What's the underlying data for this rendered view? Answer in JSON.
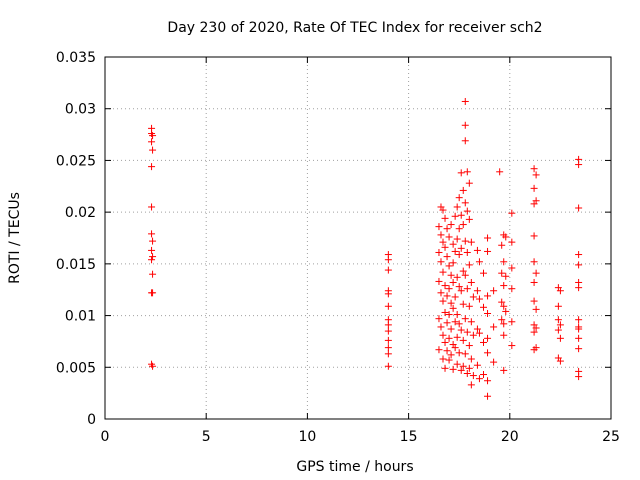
{
  "chart_data": {
    "type": "scatter",
    "title": "Day 230 of 2020, Rate Of TEC Index for receiver sch2",
    "xlabel": "GPS time / hours",
    "ylabel": "ROTI / TECUs",
    "xlim": [
      0,
      25
    ],
    "ylim": [
      0,
      0.035
    ],
    "x_ticks": [
      0,
      5,
      10,
      15,
      20,
      25
    ],
    "x_tick_labels": [
      "0",
      "5",
      "10",
      "15",
      "20",
      "25"
    ],
    "y_ticks": [
      0,
      0.005,
      0.01,
      0.015,
      0.02,
      0.025,
      0.03,
      0.035
    ],
    "y_tick_labels": [
      "0",
      "0.005",
      "0.01",
      "0.015",
      "0.02",
      "0.025",
      "0.03",
      "0.035"
    ],
    "grid": true,
    "marker": "plus",
    "marker_color": "#ff0000",
    "series": [
      {
        "points": [
          [
            2.3,
            0.0281
          ],
          [
            2.3,
            0.0276
          ],
          [
            2.35,
            0.0274
          ],
          [
            2.3,
            0.0268
          ],
          [
            2.35,
            0.026
          ],
          [
            2.3,
            0.0244
          ],
          [
            2.3,
            0.0205
          ],
          [
            2.3,
            0.0179
          ],
          [
            2.35,
            0.0172
          ],
          [
            2.3,
            0.0163
          ],
          [
            2.35,
            0.0157
          ],
          [
            2.3,
            0.0154
          ],
          [
            2.35,
            0.014
          ],
          [
            2.3,
            0.0122
          ],
          [
            2.35,
            0.0122
          ],
          [
            2.3,
            0.0053
          ],
          [
            2.35,
            0.0051
          ],
          [
            14.0,
            0.0159
          ],
          [
            14.0,
            0.0154
          ],
          [
            14.0,
            0.0144
          ],
          [
            14.0,
            0.0124
          ],
          [
            14.0,
            0.0121
          ],
          [
            14.0,
            0.0109
          ],
          [
            14.0,
            0.0096
          ],
          [
            14.0,
            0.0091
          ],
          [
            14.0,
            0.0085
          ],
          [
            14.0,
            0.0076
          ],
          [
            14.0,
            0.0069
          ],
          [
            14.0,
            0.0063
          ],
          [
            14.0,
            0.0051
          ],
          [
            16.5,
            0.0186
          ],
          [
            16.5,
            0.0161
          ],
          [
            16.5,
            0.0133
          ],
          [
            16.5,
            0.0097
          ],
          [
            16.5,
            0.0067
          ],
          [
            16.6,
            0.0205
          ],
          [
            16.6,
            0.0178
          ],
          [
            16.6,
            0.0152
          ],
          [
            16.6,
            0.0122
          ],
          [
            16.6,
            0.0089
          ],
          [
            16.7,
            0.0202
          ],
          [
            16.7,
            0.0171
          ],
          [
            16.7,
            0.0142
          ],
          [
            16.7,
            0.0114
          ],
          [
            16.7,
            0.0081
          ],
          [
            16.7,
            0.0058
          ],
          [
            16.8,
            0.0194
          ],
          [
            16.8,
            0.0166
          ],
          [
            16.8,
            0.0129
          ],
          [
            16.8,
            0.0103
          ],
          [
            16.8,
            0.0074
          ],
          [
            16.8,
            0.0049
          ],
          [
            16.9,
            0.0184
          ],
          [
            16.9,
            0.0157
          ],
          [
            16.9,
            0.0119
          ],
          [
            16.9,
            0.0093
          ],
          [
            16.9,
            0.0066
          ],
          [
            17.0,
            0.0176
          ],
          [
            17.0,
            0.0148
          ],
          [
            17.0,
            0.0126
          ],
          [
            17.0,
            0.0101
          ],
          [
            17.0,
            0.0078
          ],
          [
            17.0,
            0.0057
          ],
          [
            17.1,
            0.0188
          ],
          [
            17.1,
            0.0139
          ],
          [
            17.1,
            0.0112
          ],
          [
            17.1,
            0.0087
          ],
          [
            17.1,
            0.0062
          ],
          [
            17.2,
            0.0169
          ],
          [
            17.2,
            0.0151
          ],
          [
            17.2,
            0.0132
          ],
          [
            17.2,
            0.0107
          ],
          [
            17.2,
            0.0072
          ],
          [
            17.2,
            0.0048
          ],
          [
            17.3,
            0.0196
          ],
          [
            17.3,
            0.0162
          ],
          [
            17.3,
            0.0118
          ],
          [
            17.3,
            0.0094
          ],
          [
            17.3,
            0.0069
          ],
          [
            17.4,
            0.0205
          ],
          [
            17.4,
            0.0174
          ],
          [
            17.4,
            0.0137
          ],
          [
            17.4,
            0.0101
          ],
          [
            17.4,
            0.0079
          ],
          [
            17.4,
            0.0053
          ],
          [
            17.5,
            0.0214
          ],
          [
            17.5,
            0.0184
          ],
          [
            17.5,
            0.0159
          ],
          [
            17.5,
            0.0128
          ],
          [
            17.5,
            0.0092
          ],
          [
            17.5,
            0.0064
          ],
          [
            17.6,
            0.0238
          ],
          [
            17.6,
            0.0197
          ],
          [
            17.6,
            0.0165
          ],
          [
            17.6,
            0.0124
          ],
          [
            17.6,
            0.0086
          ],
          [
            17.6,
            0.0047
          ],
          [
            17.7,
            0.0221
          ],
          [
            17.7,
            0.0188
          ],
          [
            17.7,
            0.0143
          ],
          [
            17.7,
            0.0111
          ],
          [
            17.7,
            0.0076
          ],
          [
            17.7,
            0.0051
          ],
          [
            17.8,
            0.0307
          ],
          [
            17.8,
            0.0284
          ],
          [
            17.8,
            0.0269
          ],
          [
            17.8,
            0.0209
          ],
          [
            17.8,
            0.0172
          ],
          [
            17.8,
            0.0139
          ],
          [
            17.8,
            0.0097
          ],
          [
            17.8,
            0.0063
          ],
          [
            17.9,
            0.0239
          ],
          [
            17.9,
            0.0201
          ],
          [
            17.9,
            0.0161
          ],
          [
            17.9,
            0.0126
          ],
          [
            17.9,
            0.0084
          ],
          [
            17.9,
            0.0044
          ],
          [
            18.0,
            0.0228
          ],
          [
            18.0,
            0.0193
          ],
          [
            18.0,
            0.0149
          ],
          [
            18.0,
            0.0109
          ],
          [
            18.0,
            0.0071
          ],
          [
            18.0,
            0.0049
          ],
          [
            18.1,
            0.0171
          ],
          [
            18.1,
            0.0132
          ],
          [
            18.1,
            0.0094
          ],
          [
            18.1,
            0.0058
          ],
          [
            18.1,
            0.0033
          ],
          [
            18.2,
            0.0118
          ],
          [
            18.2,
            0.0081
          ],
          [
            18.2,
            0.0042
          ],
          [
            18.4,
            0.0163
          ],
          [
            18.4,
            0.0124
          ],
          [
            18.4,
            0.0087
          ],
          [
            18.4,
            0.0052
          ],
          [
            18.5,
            0.0152
          ],
          [
            18.5,
            0.0116
          ],
          [
            18.5,
            0.0083
          ],
          [
            18.5,
            0.0039
          ],
          [
            18.7,
            0.0141
          ],
          [
            18.7,
            0.0108
          ],
          [
            18.7,
            0.0074
          ],
          [
            18.7,
            0.0043
          ],
          [
            18.9,
            0.0175
          ],
          [
            18.9,
            0.0162
          ],
          [
            18.9,
            0.0119
          ],
          [
            18.9,
            0.0102
          ],
          [
            18.9,
            0.0078
          ],
          [
            18.9,
            0.0064
          ],
          [
            18.9,
            0.0037
          ],
          [
            18.9,
            0.0022
          ],
          [
            19.2,
            0.0124
          ],
          [
            19.2,
            0.0089
          ],
          [
            19.2,
            0.0055
          ],
          [
            19.5,
            0.0239
          ],
          [
            19.6,
            0.0168
          ],
          [
            19.6,
            0.0141
          ],
          [
            19.6,
            0.0113
          ],
          [
            19.6,
            0.0096
          ],
          [
            19.7,
            0.0178
          ],
          [
            19.7,
            0.0152
          ],
          [
            19.7,
            0.0129
          ],
          [
            19.7,
            0.0109
          ],
          [
            19.7,
            0.0092
          ],
          [
            19.7,
            0.0081
          ],
          [
            19.7,
            0.0047
          ],
          [
            19.8,
            0.0176
          ],
          [
            19.8,
            0.0138
          ],
          [
            19.8,
            0.0104
          ],
          [
            20.1,
            0.0199
          ],
          [
            20.1,
            0.0171
          ],
          [
            20.1,
            0.0146
          ],
          [
            20.1,
            0.0126
          ],
          [
            20.1,
            0.0094
          ],
          [
            20.1,
            0.0071
          ],
          [
            21.2,
            0.0242
          ],
          [
            21.2,
            0.0223
          ],
          [
            21.2,
            0.0208
          ],
          [
            21.2,
            0.0177
          ],
          [
            21.2,
            0.0152
          ],
          [
            21.2,
            0.0132
          ],
          [
            21.2,
            0.0114
          ],
          [
            21.2,
            0.0091
          ],
          [
            21.2,
            0.0084
          ],
          [
            21.2,
            0.0067
          ],
          [
            21.3,
            0.0236
          ],
          [
            21.3,
            0.0211
          ],
          [
            21.3,
            0.0141
          ],
          [
            21.3,
            0.0106
          ],
          [
            21.3,
            0.0088
          ],
          [
            21.3,
            0.0069
          ],
          [
            22.4,
            0.0127
          ],
          [
            22.4,
            0.0109
          ],
          [
            22.4,
            0.0096
          ],
          [
            22.4,
            0.0086
          ],
          [
            22.4,
            0.0059
          ],
          [
            22.5,
            0.0124
          ],
          [
            22.5,
            0.0091
          ],
          [
            22.5,
            0.0078
          ],
          [
            22.5,
            0.0056
          ],
          [
            23.4,
            0.0251
          ],
          [
            23.4,
            0.0246
          ],
          [
            23.4,
            0.0204
          ],
          [
            23.4,
            0.0159
          ],
          [
            23.4,
            0.0149
          ],
          [
            23.4,
            0.0132
          ],
          [
            23.4,
            0.0127
          ],
          [
            23.4,
            0.0096
          ],
          [
            23.4,
            0.0089
          ],
          [
            23.4,
            0.0087
          ],
          [
            23.4,
            0.0078
          ],
          [
            23.4,
            0.0068
          ],
          [
            23.4,
            0.0046
          ],
          [
            23.4,
            0.0041
          ]
        ]
      }
    ]
  }
}
